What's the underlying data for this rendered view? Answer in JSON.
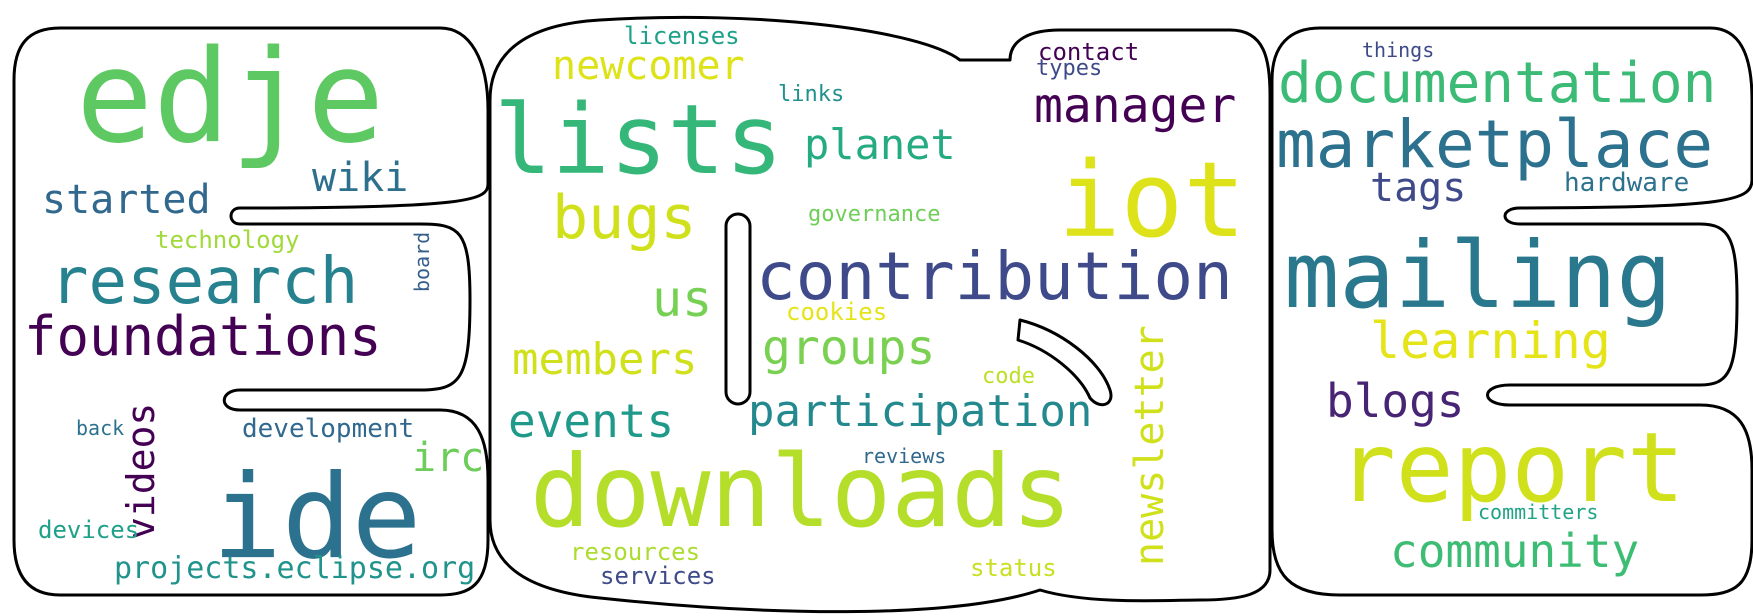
{
  "words": {
    "edje": {
      "text": "edje",
      "color": "#5ec962"
    },
    "lists": {
      "text": "lists",
      "color": "#35b779"
    },
    "iot": {
      "text": "iot",
      "color": "#dde318"
    },
    "contribution": {
      "text": "contribution",
      "color": "#3e4a89"
    },
    "downloads": {
      "text": "downloads",
      "color": "#b5de2b"
    },
    "ide": {
      "text": "ide",
      "color": "#2c728e"
    },
    "mailing": {
      "text": "mailing",
      "color": "#2a788e"
    },
    "report": {
      "text": "report",
      "color": "#d0e11c"
    },
    "marketplace": {
      "text": "marketplace",
      "color": "#2c728e"
    },
    "documentation": {
      "text": "documentation",
      "color": "#3bbb75"
    },
    "research": {
      "text": "research",
      "color": "#26828e"
    },
    "foundations": {
      "text": "foundations",
      "color": "#440154"
    },
    "bugs": {
      "text": "bugs",
      "color": "#d0e11c"
    },
    "manager": {
      "text": "manager",
      "color": "#440154"
    },
    "planet": {
      "text": "planet",
      "color": "#25ab82"
    },
    "newcomer": {
      "text": "newcomer",
      "color": "#dde318"
    },
    "learning": {
      "text": "learning",
      "color": "#e5e419"
    },
    "community": {
      "text": "community",
      "color": "#3dbc74"
    },
    "events": {
      "text": "events",
      "color": "#1f9a8a"
    },
    "participation": {
      "text": "participation",
      "color": "#23898e"
    },
    "members": {
      "text": "members",
      "color": "#d0e11c"
    },
    "groups": {
      "text": "groups",
      "color": "#7ad151"
    },
    "newsletter": {
      "text": "newsletter",
      "color": "#d0e11c"
    },
    "blogs": {
      "text": "blogs",
      "color": "#482475"
    },
    "started": {
      "text": "started",
      "color": "#31688e"
    },
    "wiki": {
      "text": "wiki",
      "color": "#2d708e"
    },
    "tags": {
      "text": "tags",
      "color": "#3e4a89"
    },
    "us": {
      "text": "us",
      "color": "#75d054"
    },
    "videos": {
      "text": "videos",
      "color": "#440154"
    },
    "irc": {
      "text": "irc",
      "color": "#6ccd5a"
    },
    "projects": {
      "text": "projects.eclipse.org",
      "color": "#20938c"
    },
    "development": {
      "text": "development",
      "color": "#31688e"
    },
    "hardware": {
      "text": "hardware",
      "color": "#2c728e"
    },
    "technology": {
      "text": "technology",
      "color": "#a0da39"
    },
    "licenses": {
      "text": "licenses",
      "color": "#1fa088"
    },
    "links": {
      "text": "links",
      "color": "#21918c"
    },
    "governance": {
      "text": "governance",
      "color": "#6ece58"
    },
    "contact": {
      "text": "contact",
      "color": "#440154"
    },
    "types": {
      "text": "types",
      "color": "#3e4a89"
    },
    "things": {
      "text": "things",
      "color": "#3e4a89"
    },
    "board": {
      "text": "board",
      "color": "#355f8d"
    },
    "cookies": {
      "text": "cookies",
      "color": "#e5e419"
    },
    "code": {
      "text": "code",
      "color": "#bddf26"
    },
    "back": {
      "text": "back",
      "color": "#2c728e"
    },
    "devices": {
      "text": "devices",
      "color": "#1fa088"
    },
    "reviews": {
      "text": "reviews",
      "color": "#31688e"
    },
    "resources": {
      "text": "resources",
      "color": "#addc30"
    },
    "services": {
      "text": "services",
      "color": "#3e4a89"
    },
    "status": {
      "text": "status",
      "color": "#c8e020"
    },
    "committers": {
      "text": "committers",
      "color": "#20a386"
    }
  }
}
